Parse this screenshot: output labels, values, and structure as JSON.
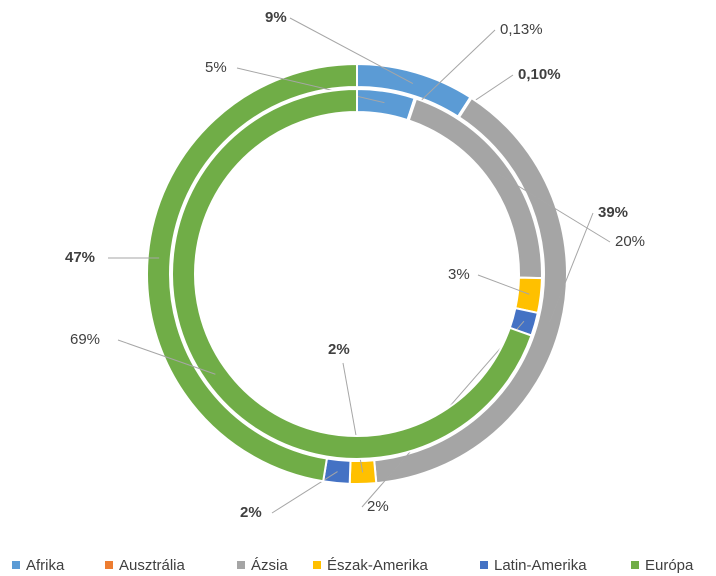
{
  "chart_data": {
    "type": "doughnut",
    "categories": [
      "Afrika",
      "Ausztrália",
      "Ázsia",
      "Észak-Amerika",
      "Latin-Amerika",
      "Európa"
    ],
    "colors": [
      "#5b9bd5",
      "#ed7d31",
      "#a5a5a5",
      "#ffc000",
      "#4472c4",
      "#70ad47"
    ],
    "series": [
      {
        "values": [
          9,
          0.1,
          39,
          2,
          2,
          47
        ],
        "value_labels": [
          "9%",
          "0,10%",
          "39%",
          "2%",
          "2%",
          "47%"
        ]
      },
      {
        "values": [
          5,
          0.13,
          20,
          3,
          2,
          69
        ],
        "value_labels": [
          "5%",
          "0,13%",
          "20%",
          "3%",
          "2%",
          "69%"
        ]
      }
    ]
  }
}
